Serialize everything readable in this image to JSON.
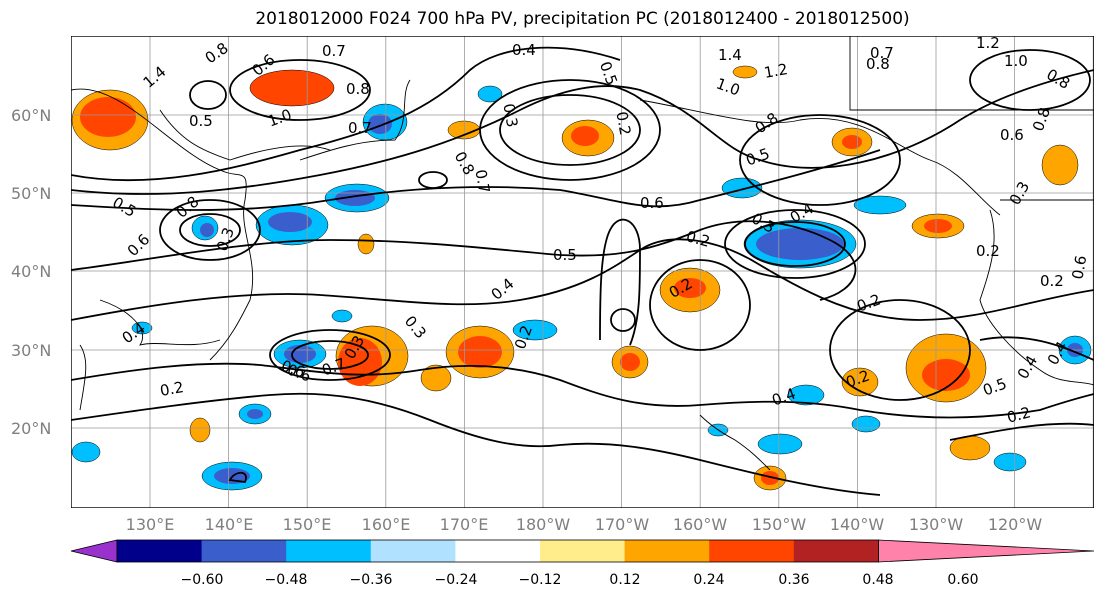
{
  "title": "2018012000 F024 700 hPa PV, precipitation PC (2018012400 - 2018012500)",
  "lat_labels": [
    "60°N",
    "50°N",
    "40°N",
    "30°N",
    "20°N"
  ],
  "lon_labels": [
    "130°E",
    "140°E",
    "150°E",
    "160°E",
    "170°E",
    "180°W",
    "170°W",
    "160°W",
    "150°W",
    "140°W",
    "130°W",
    "120°W"
  ],
  "colorbar": {
    "ticks": [
      "−0.60",
      "−0.48",
      "−0.36",
      "−0.24",
      "−0.12",
      "0.12",
      "0.24",
      "0.36",
      "0.48",
      "0.60"
    ],
    "colors": [
      "#9932cc",
      "#00008b",
      "#3a5fcd",
      "#00bfff",
      "#b0e2ff",
      "#ffffff",
      "#ffec8b",
      "#ffa500",
      "#ff4500",
      "#b22222",
      "#ff82ab"
    ],
    "extend": "both"
  },
  "contour_labels": [
    "1.4",
    "0.8",
    "0.6",
    "0.7",
    "0.8",
    "0.5",
    "1.0",
    "0.7",
    "0.4",
    "0.3",
    "0.5",
    "0.2",
    "1.4",
    "1.2",
    "1.0",
    "0.7",
    "0.8",
    "1.2",
    "1.0",
    "0.8",
    "0.6",
    "0.8",
    "0.8",
    "0.7",
    "0.5",
    "0.8",
    "0.6",
    "0.4",
    "0.3",
    "0.5",
    "0.8",
    "0.6",
    "0.3",
    "0.5",
    "0.4",
    "0.2",
    "0.2",
    "0.2",
    "0.3",
    "0.2",
    "0.4",
    "0.3",
    "0.7",
    "0.6",
    "0.2",
    "0.2",
    "0.4",
    "0.2",
    "0.5",
    "0.4",
    "0.2",
    "0.6",
    "0.3",
    "0.2",
    "0.6",
    "0.4"
  ]
}
